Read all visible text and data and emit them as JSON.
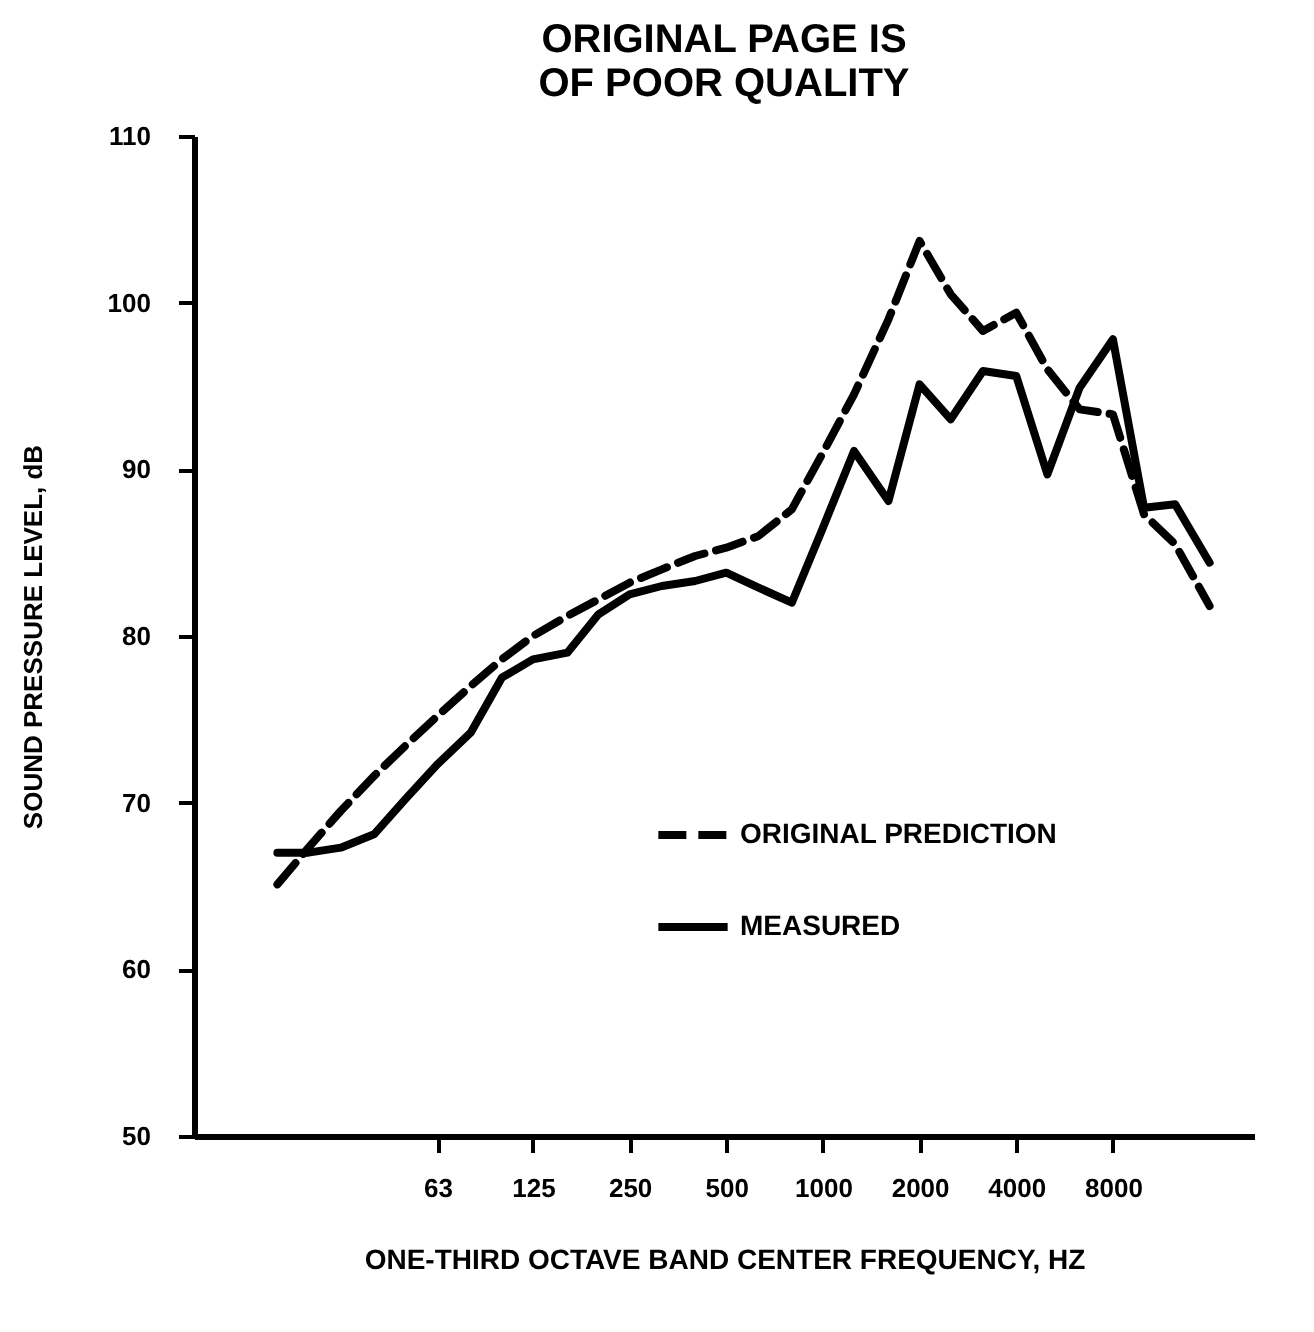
{
  "chart_data": {
    "type": "line",
    "annotations": [
      "ORIGINAL PAGE IS",
      "OF POOR QUALITY"
    ],
    "xlabel": "ONE-THIRD OCTAVE BAND CENTER FREQUENCY, HZ",
    "ylabel": "SOUND PRESSURE LEVEL, dB",
    "x": [
      20,
      25,
      31.5,
      40,
      50,
      63,
      80,
      100,
      125,
      160,
      200,
      250,
      315,
      400,
      500,
      630,
      800,
      1000,
      1250,
      1600,
      2000,
      2500,
      3150,
      4000,
      5000,
      6300,
      8000,
      10000,
      12500,
      16000
    ],
    "series": [
      {
        "name": "ORIGINAL PREDICTION",
        "color": "#000000",
        "line_style": "dashed",
        "values": [
          65.1,
          67.3,
          69.5,
          71.6,
          73.4,
          75.2,
          77.0,
          78.6,
          80.0,
          81.2,
          82.2,
          83.2,
          84.0,
          84.8,
          85.3,
          86.0,
          87.6,
          91.0,
          94.5,
          99.0,
          103.7,
          100.5,
          98.3,
          99.4,
          96.0,
          93.6,
          93.3,
          87.3,
          85.5,
          81.8
        ]
      },
      {
        "name": "MEASURED",
        "color": "#000000",
        "line_style": "solid",
        "values": [
          67.0,
          67.0,
          67.3,
          68.1,
          70.2,
          72.3,
          74.2,
          77.5,
          78.6,
          79.0,
          81.3,
          82.5,
          83.0,
          83.3,
          83.8,
          82.9,
          82.0,
          86.5,
          91.1,
          88.1,
          95.1,
          93.0,
          95.9,
          95.6,
          89.7,
          94.9,
          97.8,
          87.7,
          87.9,
          84.4
        ]
      }
    ],
    "log": "x",
    "xlim": [
      11,
      22000
    ],
    "xticks": [
      63,
      125,
      250,
      500,
      1000,
      2000,
      4000,
      8000
    ],
    "ylim": [
      50,
      110
    ],
    "yticks": [
      50,
      60,
      70,
      80,
      90,
      100,
      110
    ],
    "grid": false,
    "legend": "right",
    "marker": "none"
  }
}
